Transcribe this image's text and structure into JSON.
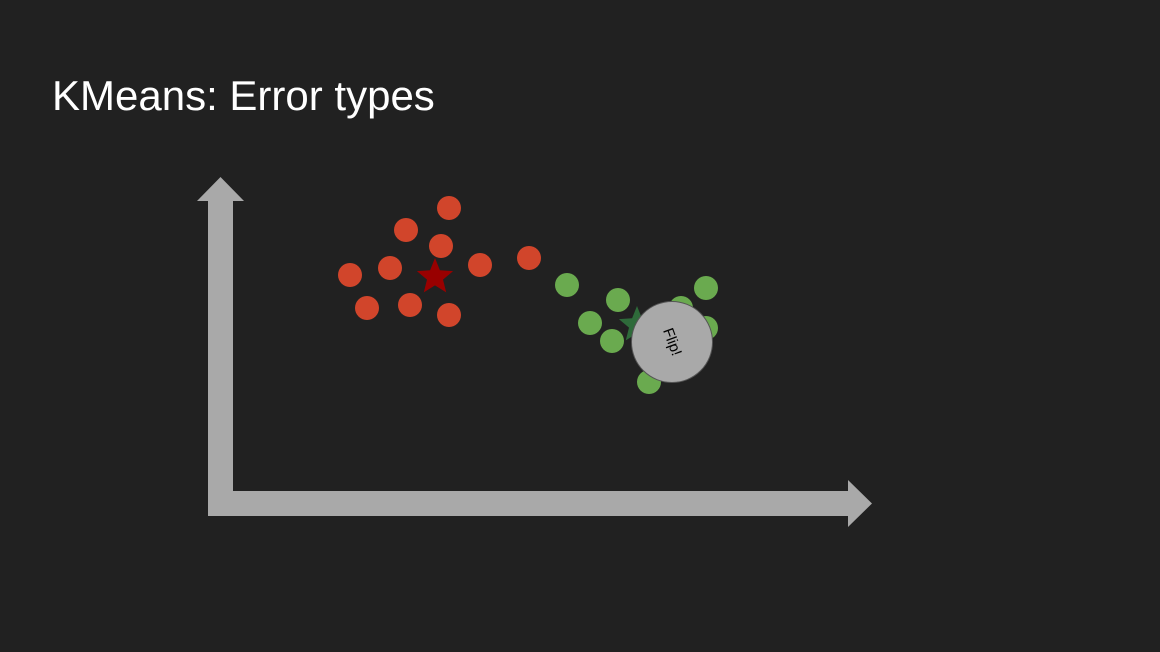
{
  "slide": {
    "title": "KMeans: Error types"
  },
  "colors": {
    "background": "#212121",
    "axis": "#a9a9a9",
    "cluster_red": "#d1452b",
    "centroid_red": "#990000",
    "cluster_green": "#6aaa4f",
    "centroid_green": "#2e6b3a",
    "flip_circle": "#a9a9a9",
    "flip_text": "#000000"
  },
  "icons": {
    "centroid_marker": "star-icon",
    "axis_heads": "arrow-head-icon"
  },
  "annotation": {
    "flip_label": "Flip!"
  }
}
